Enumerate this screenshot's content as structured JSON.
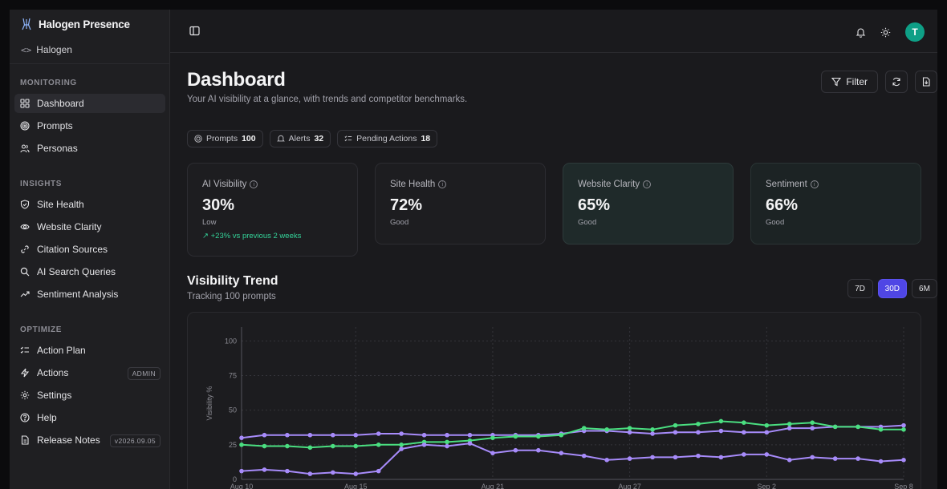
{
  "app": {
    "name": "Halogen Presence",
    "workspace": "Halogen"
  },
  "sidebar": {
    "sections": [
      {
        "label": "MONITORING",
        "items": [
          {
            "label": "Dashboard",
            "icon": "grid-icon",
            "active": true
          },
          {
            "label": "Prompts",
            "icon": "target-icon"
          },
          {
            "label": "Personas",
            "icon": "users-icon"
          }
        ]
      },
      {
        "label": "INSIGHTS",
        "items": [
          {
            "label": "Site Health",
            "icon": "shield-check-icon"
          },
          {
            "label": "Website Clarity",
            "icon": "eye-icon"
          },
          {
            "label": "Citation Sources",
            "icon": "link-icon"
          },
          {
            "label": "AI Search Queries",
            "icon": "search-icon"
          },
          {
            "label": "Sentiment Analysis",
            "icon": "trend-icon"
          }
        ]
      },
      {
        "label": "OPTIMIZE",
        "items": [
          {
            "label": "Action Plan",
            "icon": "list-checks-icon"
          },
          {
            "label": "Actions",
            "icon": "zap-icon",
            "badge": "ADMIN"
          },
          {
            "label": "Settings",
            "icon": "gear-icon"
          },
          {
            "label": "Help",
            "icon": "help-icon"
          },
          {
            "label": "Release Notes",
            "icon": "file-icon",
            "badge": "v2026.09.05"
          }
        ]
      }
    ]
  },
  "user": {
    "initial": "T",
    "avatar_color": "#0e9f86"
  },
  "page": {
    "title": "Dashboard",
    "subtitle": "Your AI visibility at a glance, with trends and competitor benchmarks.",
    "filter_label": "Filter"
  },
  "chips": [
    {
      "label": "Prompts",
      "value": "100"
    },
    {
      "label": "Alerts",
      "value": "32"
    },
    {
      "label": "Pending Actions",
      "value": "18"
    }
  ],
  "cards": [
    {
      "label": "AI Visibility",
      "value": "30%",
      "status": "Low",
      "trend": "+23% vs previous 2 weeks"
    },
    {
      "label": "Site Health",
      "value": "72%",
      "status": "Good"
    },
    {
      "label": "Website Clarity",
      "value": "65%",
      "status": "Good"
    },
    {
      "label": "Sentiment",
      "value": "66%",
      "status": "Good"
    }
  ],
  "trend": {
    "title": "Visibility Trend",
    "subtitle": "Tracking 100 prompts",
    "ranges": [
      "7D",
      "30D",
      "6M"
    ],
    "active_range": "30D"
  },
  "chart_data": {
    "type": "line",
    "ylabel": "Visibility %",
    "ylim": [
      0,
      110
    ],
    "yticks": [
      0,
      25,
      50,
      75,
      100
    ],
    "x_tick_labels": [
      "Aug 10",
      "Aug 15",
      "Aug 21",
      "Aug 27",
      "Sep 2",
      "Sep 8"
    ],
    "x_tick_index": [
      0,
      5,
      11,
      17,
      23,
      29
    ],
    "grid": true,
    "series": [
      {
        "color": "#a78bfa",
        "values": [
          30,
          32,
          32,
          32,
          32,
          32,
          33,
          33,
          32,
          32,
          32,
          32,
          32,
          32,
          33,
          35,
          35,
          34,
          33,
          34,
          34,
          35,
          34,
          34,
          37,
          37,
          38,
          38,
          38,
          39
        ]
      },
      {
        "color": "#4ade80",
        "values": [
          25,
          24,
          24,
          23,
          24,
          24,
          25,
          25,
          27,
          27,
          28,
          30,
          31,
          31,
          32,
          37,
          36,
          37,
          36,
          39,
          40,
          42,
          41,
          39,
          40,
          41,
          38,
          38,
          36,
          36
        ]
      },
      {
        "color": "#a78bfa",
        "values": [
          6,
          7,
          6,
          4,
          5,
          4,
          6,
          22,
          25,
          24,
          26,
          19,
          21,
          21,
          19,
          17,
          14,
          15,
          16,
          16,
          17,
          16,
          18,
          18,
          14,
          16,
          15,
          15,
          13,
          14
        ]
      }
    ]
  }
}
